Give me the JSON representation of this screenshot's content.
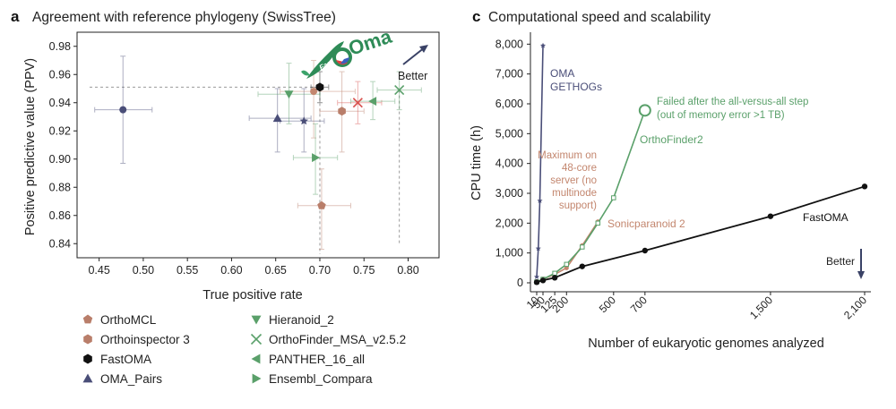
{
  "colors": {
    "axis": "#222222",
    "grid_ref": "#9a9a9a",
    "black": "#111111",
    "navy": "#4a4e78",
    "green": "#5aa06a",
    "brown": "#b97e6a",
    "salmon": "#c3866e",
    "red": "#d9534f",
    "teal": "#4fa590"
  },
  "chart_data": [
    {
      "type": "scatter",
      "panel_label": "a",
      "title": "Agreement with reference phylogeny (SwissTree)",
      "xlabel": "True positive rate",
      "ylabel": "Positive predictive value (PPV)",
      "xlim": [
        0.425,
        0.835
      ],
      "ylim": [
        0.83,
        0.99
      ],
      "xticks": [
        0.45,
        0.5,
        0.55,
        0.6,
        0.65,
        0.7,
        0.75,
        0.8
      ],
      "xtick_labels": [
        "0.45",
        "0.50",
        "0.55",
        "0.60",
        "0.65",
        "0.70",
        "0.75",
        "0.80"
      ],
      "yticks": [
        0.84,
        0.86,
        0.88,
        0.9,
        0.92,
        0.94,
        0.96,
        0.98
      ],
      "ytick_labels": [
        "0.84",
        "0.86",
        "0.88",
        "0.90",
        "0.92",
        "0.94",
        "0.96",
        "0.98"
      ],
      "better_label": "Better",
      "logo_text": {
        "prefix": "Fast",
        "main": "Oma"
      },
      "reference_lines": {
        "fastoma_tpr": 0.7,
        "fastoma_ppv": 0.951,
        "orthofinder_tpr": 0.79
      },
      "points": [
        {
          "name": "FastOMA",
          "x": 0.7,
          "y": 0.951,
          "xerr": [
            0.69,
            0.71
          ],
          "yerr": [
            0.94,
            0.962
          ],
          "marker": "hexagon",
          "color": "#111111"
        },
        {
          "name": "OMA_Pairs",
          "x": 0.652,
          "y": 0.929,
          "xerr": [
            0.62,
            0.69
          ],
          "yerr": [
            0.905,
            0.95
          ],
          "marker": "triangle-up",
          "color": "#4a4e78"
        },
        {
          "name": "OMA GETHOGs",
          "x": 0.682,
          "y": 0.927,
          "xerr": [
            0.655,
            0.705
          ],
          "yerr": [
            0.905,
            0.95
          ],
          "marker": "star",
          "color": "#4a4e78"
        },
        {
          "name": "Other (navy dot)",
          "x": 0.477,
          "y": 0.935,
          "xerr": [
            0.445,
            0.51
          ],
          "yerr": [
            0.897,
            0.973
          ],
          "marker": "circle",
          "color": "#4a4e78"
        },
        {
          "name": "OrthoMCL",
          "x": 0.702,
          "y": 0.867,
          "xerr": [
            0.675,
            0.735
          ],
          "yerr": [
            0.836,
            0.893
          ],
          "marker": "pentagon",
          "color": "#b97e6a"
        },
        {
          "name": "OrthoInspector 3",
          "x": 0.725,
          "y": 0.934,
          "xerr": [
            0.7,
            0.75
          ],
          "yerr": [
            0.905,
            0.962
          ],
          "marker": "hexagon",
          "color": "#b97e6a"
        },
        {
          "name": "Sonicparanoid 2",
          "x": 0.693,
          "y": 0.948,
          "xerr": [
            0.655,
            0.74
          ],
          "yerr": [
            0.915,
            0.97
          ],
          "marker": "circle",
          "color": "#c3866e"
        },
        {
          "name": "OrthoFinder_MSA_v2.5.2 (red)",
          "x": 0.743,
          "y": 0.94,
          "xerr": [
            0.72,
            0.77
          ],
          "yerr": [
            0.925,
            0.955
          ],
          "marker": "x",
          "color": "#d9534f"
        },
        {
          "name": "Hieranoid_2",
          "x": 0.665,
          "y": 0.946,
          "xerr": [
            0.63,
            0.7
          ],
          "yerr": [
            0.925,
            0.968
          ],
          "marker": "triangle-down",
          "color": "#5aa06a"
        },
        {
          "name": "OrthoFinder_MSA_v2.5.2",
          "x": 0.79,
          "y": 0.949,
          "xerr": [
            0.765,
            0.815
          ],
          "yerr": [
            0.935,
            0.962
          ],
          "marker": "x",
          "color": "#5aa06a"
        },
        {
          "name": "PANTHER_16_all",
          "x": 0.76,
          "y": 0.941,
          "xerr": [
            0.735,
            0.785
          ],
          "yerr": [
            0.928,
            0.955
          ],
          "marker": "triangle-left",
          "color": "#5aa06a"
        },
        {
          "name": "Ensembl_Compara",
          "x": 0.695,
          "y": 0.901,
          "xerr": [
            0.67,
            0.72
          ],
          "yerr": [
            0.875,
            0.925
          ],
          "marker": "triangle-right",
          "color": "#5aa06a"
        }
      ],
      "legend": [
        {
          "label": "OrthoMCL",
          "marker": "pentagon",
          "color": "#b97e6a"
        },
        {
          "label": "Orthoinspector 3",
          "marker": "hexagon",
          "color": "#b97e6a"
        },
        {
          "label": "FastOMA",
          "marker": "hexagon",
          "color": "#111111"
        },
        {
          "label": "OMA_Pairs",
          "marker": "triangle-up",
          "color": "#4a4e78"
        },
        {
          "label": "Hieranoid_2",
          "marker": "triangle-down",
          "color": "#5aa06a"
        },
        {
          "label": "OrthoFinder_MSA_v2.5.2",
          "marker": "x",
          "color": "#5aa06a"
        },
        {
          "label": "PANTHER_16_all",
          "marker": "triangle-left",
          "color": "#5aa06a"
        },
        {
          "label": "Ensembl_Compara",
          "marker": "triangle-right",
          "color": "#5aa06a"
        }
      ]
    },
    {
      "type": "line",
      "panel_label": "c",
      "title": "Computational speed and scalability",
      "xlabel": "Number of eukaryotic genomes analyzed",
      "ylabel": "CPU time (h)",
      "xlim": [
        -30,
        2140
      ],
      "ylim": [
        -300,
        8400
      ],
      "xticks": [
        10,
        50,
        125,
        200,
        500,
        700,
        1500,
        2100
      ],
      "xtick_labels": [
        "10",
        "50",
        "125",
        "200",
        "500",
        "700",
        "1,500",
        "2,100"
      ],
      "yticks": [
        0,
        1000,
        2000,
        3000,
        4000,
        5000,
        6000,
        7000,
        8000
      ],
      "ytick_labels": [
        "0",
        "1,000",
        "2,000",
        "3,000",
        "4,000",
        "5,000",
        "6,000",
        "7,000",
        "8,000"
      ],
      "better_label": "Better",
      "series": [
        {
          "name": "FastOMA",
          "color": "#111111",
          "marker": "circle",
          "x": [
            10,
            50,
            125,
            300,
            700,
            1500,
            2100
          ],
          "y": [
            20,
            80,
            170,
            550,
            1080,
            2230,
            3230
          ]
        },
        {
          "name": "OMA GETHOGs",
          "color": "#4a4e78",
          "marker": "star",
          "x": [
            10,
            20,
            30,
            50
          ],
          "y": [
            200,
            1150,
            2750,
            7950
          ]
        },
        {
          "name": "OrthoFinder2",
          "color": "#5aa06a",
          "marker": "square",
          "x": [
            10,
            50,
            125,
            200,
            300,
            400,
            500,
            700
          ],
          "y": [
            30,
            120,
            320,
            620,
            1200,
            2000,
            2850,
            5780
          ]
        },
        {
          "name": "Sonicparanoid 2",
          "color": "#c3866e",
          "marker": "circle",
          "x": [
            10,
            50,
            125,
            200,
            300,
            400
          ],
          "y": [
            30,
            130,
            280,
            500,
            1250,
            2050
          ]
        }
      ],
      "failed_point": {
        "series": "OrthoFinder2",
        "x": 700,
        "y": 5780
      },
      "annotations": {
        "oma_gethogs": [
          "OMA",
          "GETHOGs"
        ],
        "failed": [
          "Failed after the all-versus-all step",
          "(out of memory error >1 TB)"
        ],
        "orthofinder2": "OrthoFinder2",
        "maximum": [
          "Maximum on",
          "48-core",
          "server (no",
          "multinode",
          "support)"
        ],
        "sonicparanoid": "Sonicparanoid 2",
        "fastoma": "FastOMA"
      }
    }
  ]
}
